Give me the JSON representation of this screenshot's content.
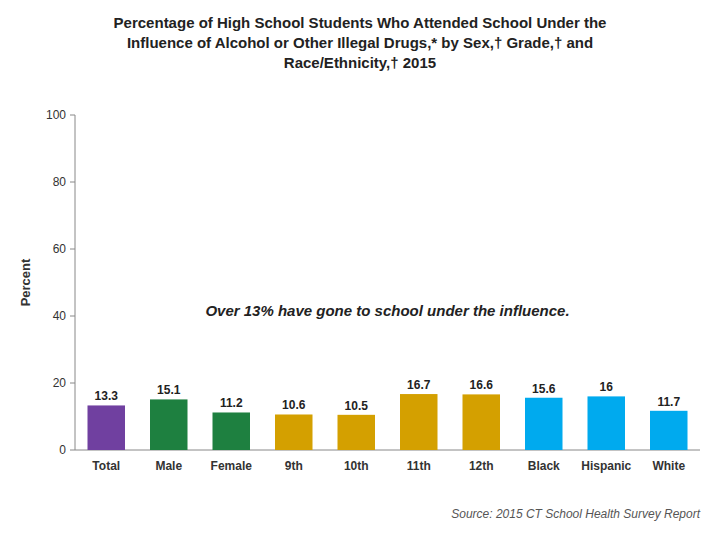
{
  "chart_data": {
    "type": "bar",
    "title": "Percentage of High School Students Who Attended School Under the\nInfluence of Alcohol or Other Illegal Drugs,* by Sex,† Grade,† and\nRace/Ethnicity,† 2015",
    "categories": [
      "Total",
      "Male",
      "Female",
      "9th",
      "10th",
      "11th",
      "12th",
      "Black",
      "Hispanic",
      "White"
    ],
    "values": [
      13.3,
      15.1,
      11.2,
      10.6,
      10.5,
      16.7,
      16.6,
      15.6,
      16.0,
      11.7
    ],
    "colors": [
      "#7040A0",
      "#1E8040",
      "#1E8040",
      "#D4A000",
      "#D4A000",
      "#D4A000",
      "#D4A000",
      "#00AAEE",
      "#00AAEE",
      "#00AAEE"
    ],
    "ylabel": "Percent",
    "ylim": [
      0,
      100
    ],
    "yticks": [
      0,
      20,
      40,
      60,
      80,
      100
    ],
    "grid": false,
    "data_labels": true,
    "annotation": "Over 13% have gone to school under the influence.",
    "source": "Source: 2015 CT School Health Survey Report"
  }
}
